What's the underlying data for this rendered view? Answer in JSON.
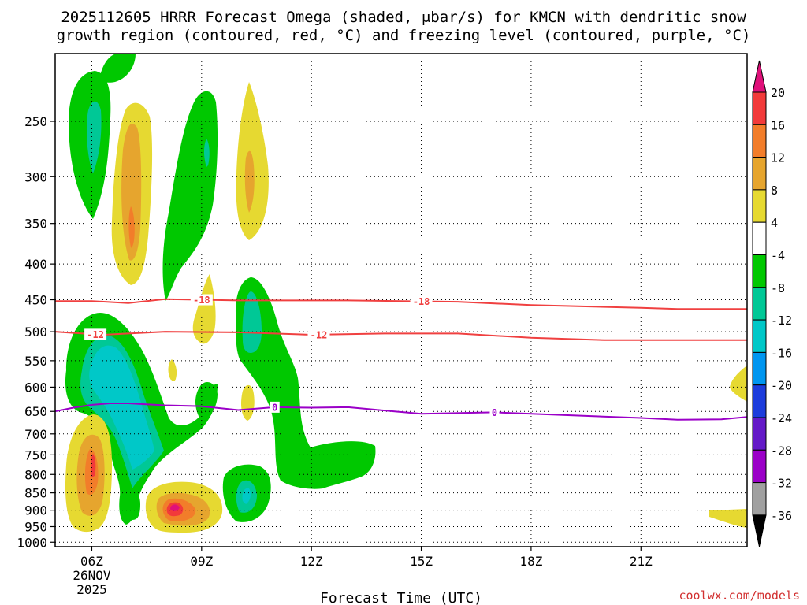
{
  "chart_data": {
    "type": "time-height",
    "title_line1": "2025112605 HRRR Forecast Omega (shaded, μbar/s) for KMCN with dendritic snow",
    "title_line2": "growth region (contoured, red, °C) and freezing level (contoured, purple, °C)",
    "xlabel": "Forecast Time (UTC)",
    "x_range_hours": [
      5,
      23.9
    ],
    "y_range_hpa": [
      200,
      1015
    ],
    "x_ticks": [
      {
        "hour": 6,
        "label": "06Z",
        "sub1": "26NOV",
        "sub2": "2025"
      },
      {
        "hour": 9,
        "label": "09Z"
      },
      {
        "hour": 12,
        "label": "12Z"
      },
      {
        "hour": 15,
        "label": "15Z"
      },
      {
        "hour": 18,
        "label": "18Z"
      },
      {
        "hour": 21,
        "label": "21Z"
      }
    ],
    "y_ticks": [
      250,
      300,
      350,
      400,
      450,
      500,
      550,
      600,
      650,
      700,
      750,
      800,
      850,
      900,
      950,
      1000
    ],
    "colorbar": {
      "labels": [
        "20",
        "16",
        "12",
        "8",
        "4",
        "-4",
        "-8",
        "-12",
        "-16",
        "-20",
        "-24",
        "-28",
        "-32",
        "-36"
      ],
      "top_arrow_color": "#e0107a",
      "bottom_arrow_color": "#000000",
      "segment_colors": [
        "#f23a3a",
        "#f27d2a",
        "#e6a52e",
        "#e6d931",
        "#ffffff",
        "#00c800",
        "#00c896",
        "#00c8c8",
        "#0096f0",
        "#1c3cdc",
        "#6419c8",
        "#9b00c8",
        "#a0a0a0"
      ]
    },
    "contours": [
      {
        "name": "-18C",
        "color": "#f04040",
        "label": "-18",
        "points": [
          [
            5,
            452
          ],
          [
            6,
            452
          ],
          [
            7,
            455
          ],
          [
            8,
            449
          ],
          [
            10,
            451
          ],
          [
            13,
            451
          ],
          [
            16,
            453
          ],
          [
            18,
            458
          ],
          [
            21,
            462
          ],
          [
            22,
            464
          ],
          [
            23.9,
            464
          ]
        ],
        "label_hours": [
          9,
          15
        ]
      },
      {
        "name": "-12C",
        "color": "#f04040",
        "label": "-12",
        "points": [
          [
            5,
            500
          ],
          [
            6.3,
            505
          ],
          [
            7,
            503
          ],
          [
            8,
            500
          ],
          [
            10,
            501
          ],
          [
            12,
            505
          ],
          [
            14,
            503
          ],
          [
            16,
            503
          ],
          [
            18,
            510
          ],
          [
            20,
            514
          ],
          [
            22,
            514
          ],
          [
            23.9,
            514
          ]
        ],
        "label_hours": [
          6.1,
          12.2
        ]
      },
      {
        "name": "0C",
        "color": "#9b00c8",
        "label": "0",
        "points": [
          [
            5,
            650
          ],
          [
            5.5,
            642
          ],
          [
            6,
            636
          ],
          [
            6.5,
            633
          ],
          [
            7,
            633
          ],
          [
            8,
            637
          ],
          [
            9,
            639
          ],
          [
            10,
            647
          ],
          [
            11,
            641
          ],
          [
            12,
            642
          ],
          [
            13,
            641
          ],
          [
            14,
            648
          ],
          [
            15,
            655
          ],
          [
            17,
            652
          ],
          [
            19,
            658
          ],
          [
            21,
            664
          ],
          [
            22,
            668
          ],
          [
            23.2,
            667
          ],
          [
            23.9,
            662
          ]
        ],
        "label_hours": [
          11,
          17
        ]
      }
    ],
    "surface_color": "#a05a2d"
  },
  "credit": "coolwx.com/models"
}
